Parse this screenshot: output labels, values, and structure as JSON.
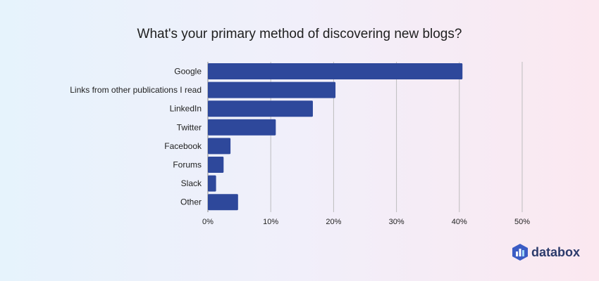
{
  "chart_data": {
    "type": "bar",
    "orientation": "horizontal",
    "title": "What's your primary method of discovering new blogs?",
    "xlabel": "",
    "ylabel": "",
    "categories": [
      "Google",
      "Links from other publications I read",
      "LinkedIn",
      "Twitter",
      "Facebook",
      "Forums",
      "Slack",
      "Other"
    ],
    "values": [
      40.5,
      20.3,
      16.7,
      10.8,
      3.6,
      2.5,
      1.3,
      4.8
    ],
    "xlim": [
      0,
      50
    ],
    "ticks": [
      0,
      10,
      20,
      30,
      40,
      50
    ],
    "tick_labels": [
      "0%",
      "10%",
      "20%",
      "30%",
      "40%",
      "50%"
    ],
    "grid": true,
    "legend": "none",
    "bar_color": "#2e489b"
  },
  "brand": {
    "name": "databox",
    "icon": "databox-logo-icon",
    "colors": [
      "#3b5cc4",
      "#1aa3e8",
      "#2b3a6b"
    ]
  }
}
